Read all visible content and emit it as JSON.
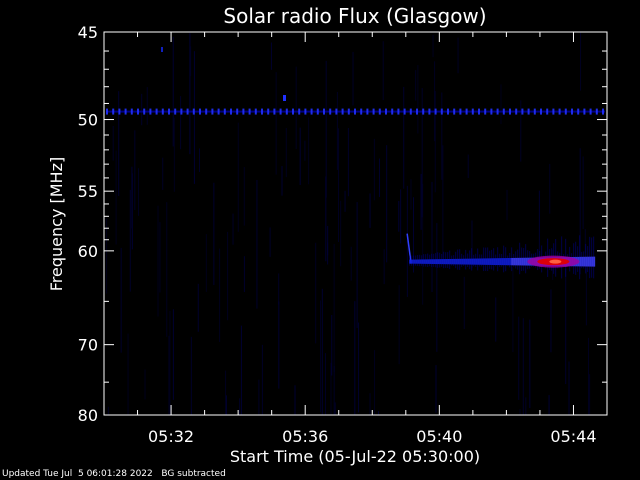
{
  "chart_data": {
    "type": "heatmap",
    "title": "Solar radio Flux (Glasgow)",
    "xlabel": "Start Time (05-Jul-22 05:30:00)",
    "ylabel": "Frequency [MHz]",
    "x_tick_labels": [
      "05:32",
      "05:36",
      "05:40",
      "05:44"
    ],
    "x_ticks_minutes": [
      2,
      6,
      10,
      14
    ],
    "xlim_minutes": [
      0,
      15
    ],
    "y_tick_labels": [
      "45",
      "50",
      "55",
      "60",
      "70",
      "80"
    ],
    "y_ticks": [
      45,
      50,
      55,
      60,
      70,
      80
    ],
    "ylim": [
      45,
      80
    ],
    "y_scale": "reciprocal",
    "colors": {
      "background": "#000000",
      "axes": "#ffffff"
    },
    "features": [
      {
        "name": "",
        "kind": "interference-line",
        "freq_mhz": 49.5,
        "t_start_minutes": 0,
        "t_end_minutes": 15,
        "intensity": 0.6
      },
      {
        "name": "",
        "kind": "burst",
        "freq_mhz": 61.0,
        "t_start_minutes": 9.1,
        "t_end_minutes": 14.6,
        "intensity": 1.0
      }
    ]
  },
  "footer": {
    "updated_label": "Updated Tue Jul  5 06:01:28 2022",
    "bg_label": "BG subtracted"
  }
}
